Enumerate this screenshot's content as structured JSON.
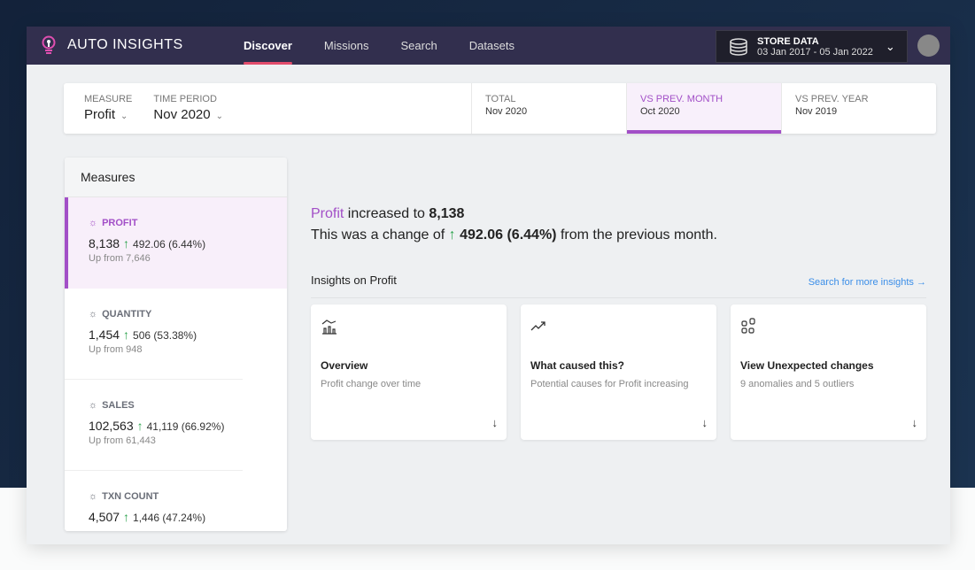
{
  "app": {
    "title": "AUTO INSIGHTS",
    "nav": [
      "Discover",
      "Missions",
      "Search",
      "Datasets"
    ],
    "active_nav": "Discover",
    "accent": "#a24fc7"
  },
  "dataset": {
    "name": "STORE DATA",
    "range": "03 Jan 2017 - 05 Jan 2022"
  },
  "filter": {
    "measure_label": "MEASURE",
    "measure": "Profit",
    "period_label": "TIME PERIOD",
    "period": "Nov 2020",
    "comparisons": [
      {
        "label": "TOTAL",
        "value": "Nov 2020"
      },
      {
        "label": "VS PREV. MONTH",
        "value": "Oct 2020",
        "active": true
      },
      {
        "label": "VS PREV. YEAR",
        "value": "Nov 2019"
      }
    ]
  },
  "measures": {
    "title": "Measures",
    "items": [
      {
        "name": "PROFIT",
        "value": "8,138",
        "change": "492.06 (6.44%)",
        "sub": "Up from 7,646"
      },
      {
        "name": "QUANTITY",
        "value": "1,454",
        "change": "506 (53.38%)",
        "sub": "Up from 948"
      },
      {
        "name": "SALES",
        "value": "102,563",
        "change": "41,119 (66.92%)",
        "sub": "Up from 61,443"
      },
      {
        "name": "TXN COUNT",
        "value": "4,507",
        "change": "1,446 (47.24%)",
        "sub": ""
      }
    ]
  },
  "summary": {
    "measure": "Profit",
    "l1_mid": " increased to ",
    "value": "8,138",
    "l2_pre": "This was a change of ",
    "arrow": "↑",
    "change": " 492.06 (6.44%)",
    "l2_post": " from the previous month."
  },
  "insights": {
    "title": "Insights on Profit",
    "link": "Search for more insights",
    "cards": [
      {
        "icon": "chart-icon",
        "title": "Overview",
        "sub": "Profit change over time"
      },
      {
        "icon": "trend-up-icon",
        "title": "What caused this?",
        "sub": "Potential causes for Profit increasing"
      },
      {
        "icon": "shapes-icon",
        "title": "View Unexpected changes",
        "sub": "9 anomalies and 5 outliers"
      }
    ]
  }
}
